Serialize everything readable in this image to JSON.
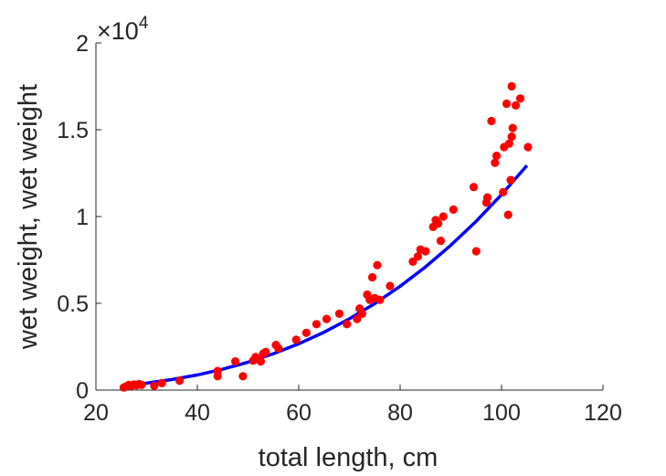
{
  "chart_data": {
    "type": "scatter",
    "xlabel": "total length, cm",
    "ylabel": "wet weight, wet weight",
    "xlim": [
      20,
      120
    ],
    "ylim": [
      0,
      20000
    ],
    "xticks": [
      20,
      40,
      60,
      80,
      100,
      120
    ],
    "yticks": [
      0,
      5000,
      10000,
      15000,
      20000
    ],
    "ytick_labels": [
      "0",
      "0.5",
      "1",
      "1.5",
      "2"
    ],
    "y_exponent_base": "×10",
    "y_exponent_power": "4",
    "grid": false,
    "colors": {
      "points": "#ff0000",
      "fit": "#0000ff",
      "axes": "#262626"
    },
    "series": [
      {
        "kind": "scatter",
        "points": [
          [
            25.5,
            150
          ],
          [
            26,
            220
          ],
          [
            26.5,
            300
          ],
          [
            27,
            250
          ],
          [
            27.5,
            320
          ],
          [
            28,
            280
          ],
          [
            28.5,
            350
          ],
          [
            29,
            300
          ],
          [
            31.5,
            250
          ],
          [
            33,
            400
          ],
          [
            36.5,
            550
          ],
          [
            44,
            800
          ],
          [
            44,
            1100
          ],
          [
            47.5,
            1650
          ],
          [
            49,
            800
          ],
          [
            51,
            1700
          ],
          [
            51.5,
            1900
          ],
          [
            52.5,
            1650
          ],
          [
            53,
            2100
          ],
          [
            53.5,
            2200
          ],
          [
            55.5,
            2600
          ],
          [
            56,
            2400
          ],
          [
            59.5,
            2900
          ],
          [
            61.5,
            3300
          ],
          [
            63.5,
            3800
          ],
          [
            65.5,
            4100
          ],
          [
            68,
            4400
          ],
          [
            69.5,
            3800
          ],
          [
            71.5,
            4100
          ],
          [
            72,
            4700
          ],
          [
            72.5,
            4400
          ],
          [
            73.5,
            5500
          ],
          [
            74,
            5200
          ],
          [
            74.5,
            6500
          ],
          [
            75,
            5300
          ],
          [
            75.5,
            7200
          ],
          [
            76,
            5200
          ],
          [
            78,
            6000
          ],
          [
            82.5,
            7400
          ],
          [
            83.5,
            7700
          ],
          [
            84,
            8100
          ],
          [
            85,
            8000
          ],
          [
            86.5,
            9400
          ],
          [
            87,
            9800
          ],
          [
            87.5,
            9600
          ],
          [
            88,
            8600
          ],
          [
            88.5,
            10000
          ],
          [
            90.5,
            10400
          ],
          [
            94.5,
            11700
          ],
          [
            95,
            8000
          ],
          [
            97,
            10800
          ],
          [
            97.2,
            11100
          ],
          [
            98,
            15500
          ],
          [
            98.7,
            13100
          ],
          [
            99,
            13500
          ],
          [
            100.3,
            11400
          ],
          [
            100.5,
            14000
          ],
          [
            101,
            16500
          ],
          [
            101.3,
            10100
          ],
          [
            101.5,
            14200
          ],
          [
            101.8,
            12100
          ],
          [
            102,
            14600
          ],
          [
            102.2,
            15100
          ],
          [
            102,
            17500
          ],
          [
            102.8,
            16400
          ],
          [
            103.7,
            16800
          ],
          [
            105.2,
            14000
          ]
        ]
      },
      {
        "kind": "fit-line",
        "x_range": [
          25.5,
          105
        ],
        "samples": [
          [
            25.5,
            253
          ],
          [
            30,
            398
          ],
          [
            35,
            608
          ],
          [
            40,
            875
          ],
          [
            45,
            1207
          ],
          [
            50,
            1612
          ],
          [
            55,
            2098
          ],
          [
            60,
            2671
          ],
          [
            65,
            3339
          ],
          [
            70,
            4110
          ],
          [
            75,
            4988
          ],
          [
            80,
            5983
          ],
          [
            85,
            7101
          ],
          [
            90,
            8349
          ],
          [
            95,
            9734
          ],
          [
            100,
            11263
          ],
          [
            105,
            12944
          ]
        ]
      }
    ]
  }
}
